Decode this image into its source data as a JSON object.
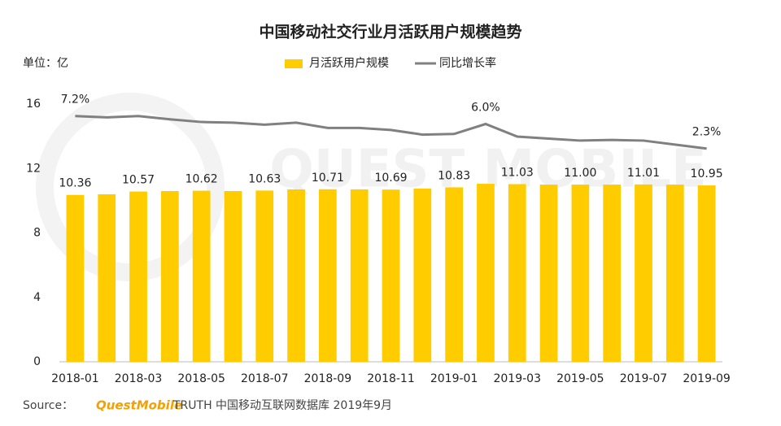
{
  "chart_data": {
    "type": "bar-line",
    "title": "中国移动社交行业月活跃用户规模趋势",
    "unit_label": "单位：亿",
    "watermark": "QUEST MOBILE",
    "categories": [
      "2018-01",
      null,
      "2018-03",
      null,
      "2018-05",
      null,
      "2018-07",
      null,
      "2018-09",
      null,
      "2018-11",
      null,
      "2019-01",
      null,
      "2019-03",
      null,
      "2019-05",
      null,
      "2019-07",
      null,
      "2019-09"
    ],
    "series": [
      {
        "name": "月活跃用户规模",
        "color": "#ffcc00",
        "values": [
          10.36,
          10.4,
          10.57,
          10.6,
          10.62,
          10.6,
          10.63,
          10.7,
          10.71,
          10.7,
          10.69,
          10.75,
          10.83,
          11.05,
          11.03,
          11.0,
          11.0,
          11.0,
          11.01,
          11.0,
          10.95
        ],
        "value_labels": [
          "10.36",
          null,
          "10.57",
          null,
          "10.62",
          null,
          "10.63",
          null,
          "10.71",
          null,
          "10.69",
          null,
          "10.83",
          null,
          "11.03",
          null,
          "11.00",
          null,
          "11.01",
          null,
          "10.95"
        ]
      },
      {
        "name": "同比增长率",
        "color": "#808080",
        "axis": "y2",
        "values": [
          7.2,
          7.0,
          7.2,
          6.7,
          6.3,
          6.2,
          5.9,
          6.2,
          5.4,
          5.4,
          5.1,
          4.4,
          4.5,
          6.0,
          4.1,
          3.8,
          3.5,
          3.6,
          3.5,
          2.9,
          2.3
        ],
        "value_labels": [
          "7.2%",
          null,
          null,
          null,
          null,
          null,
          null,
          null,
          null,
          null,
          null,
          null,
          null,
          "6.0%",
          null,
          null,
          null,
          null,
          null,
          null,
          "2.3%"
        ]
      }
    ],
    "ylim": [
      0,
      16
    ],
    "yticks": [
      0,
      4,
      8,
      12,
      16
    ],
    "y2lim": [
      -29.8,
      9
    ],
    "legend": "top",
    "source_prefix": "Source：",
    "source_brand": "QuestMobile",
    "source_text": "TRUTH 中国移动互联网数据库 2019年9月"
  }
}
